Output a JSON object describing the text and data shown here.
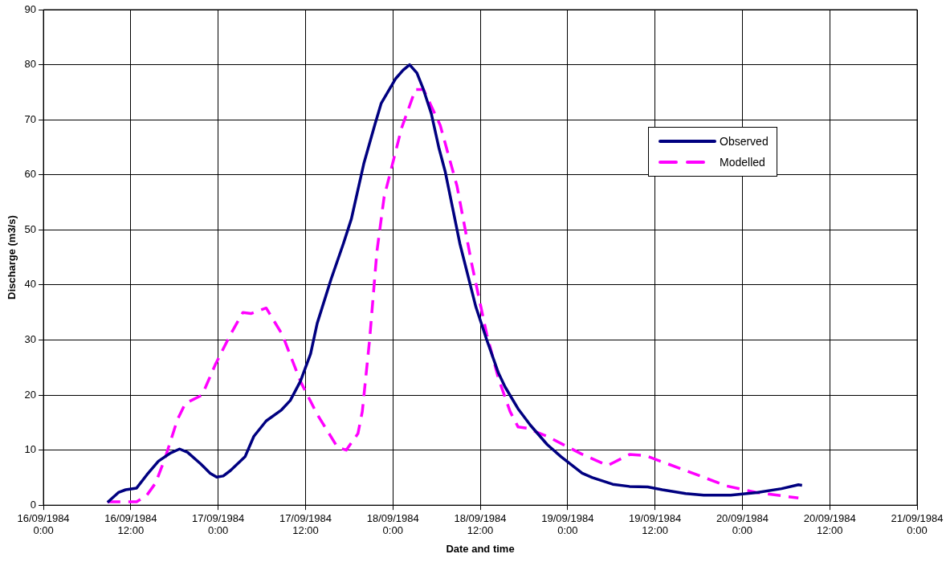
{
  "chart_data": {
    "type": "line",
    "xlabel": "Date and time",
    "ylabel": "Discharge (m3/s)",
    "xlim": [
      "1984-09-16T00:00",
      "1984-09-21T00:00"
    ],
    "xticks": [
      {
        "value": "1984-09-16T00:00",
        "label": "16/09/1984 0:00"
      },
      {
        "value": "1984-09-16T12:00",
        "label": "16/09/1984 12:00"
      },
      {
        "value": "1984-09-17T00:00",
        "label": "17/09/1984 0:00"
      },
      {
        "value": "1984-09-17T12:00",
        "label": "17/09/1984 12:00"
      },
      {
        "value": "1984-09-18T00:00",
        "label": "18/09/1984 0:00"
      },
      {
        "value": "1984-09-18T12:00",
        "label": "18/09/1984 12:00"
      },
      {
        "value": "1984-09-19T00:00",
        "label": "19/09/1984 0:00"
      },
      {
        "value": "1984-09-19T12:00",
        "label": "19/09/1984 12:00"
      },
      {
        "value": "1984-09-20T00:00",
        "label": "20/09/1984 0:00"
      },
      {
        "value": "1984-09-20T12:00",
        "label": "20/09/1984 12:00"
      },
      {
        "value": "1984-09-21T00:00",
        "label": "21/09/1984 0:00"
      }
    ],
    "ylim": [
      0,
      90
    ],
    "yticks": [
      0,
      10,
      20,
      30,
      40,
      50,
      60,
      70,
      80,
      90
    ],
    "grid": true,
    "legend": "right",
    "marker": "none",
    "series": [
      {
        "name": "Observed",
        "color": "#000080",
        "line_style": "solid",
        "x": [
          "1984-09-16T08:48",
          "1984-09-16T10:18",
          "1984-09-16T11:18",
          "1984-09-16T12:48",
          "1984-09-16T14:12",
          "1984-09-16T15:48",
          "1984-09-16T17:30",
          "1984-09-16T18:42",
          "1984-09-16T19:48",
          "1984-09-16T21:36",
          "1984-09-16T22:54",
          "1984-09-16T23:48",
          "1984-09-17T00:42",
          "1984-09-17T01:42",
          "1984-09-17T03:42",
          "1984-09-17T04:54",
          "1984-09-17T06:36",
          "1984-09-17T08:42",
          "1984-09-17T09:54",
          "1984-09-17T11:18",
          "1984-09-17T12:42",
          "1984-09-17T13:36",
          "1984-09-17T15:30",
          "1984-09-17T17:12",
          "1984-09-17T18:18",
          "1984-09-17T20:00",
          "1984-09-17T21:30",
          "1984-09-17T22:24",
          "1984-09-18T00:24",
          "1984-09-18T01:24",
          "1984-09-18T02:18",
          "1984-09-18T03:18",
          "1984-09-18T04:12",
          "1984-09-18T05:18",
          "1984-09-18T06:18",
          "1984-09-18T07:12",
          "1984-09-18T09:12",
          "1984-09-18T11:24",
          "1984-09-18T12:54",
          "1984-09-18T14:30",
          "1984-09-18T15:24",
          "1984-09-18T17:12",
          "1984-09-18T18:54",
          "1984-09-18T21:12",
          "1984-09-18T23:06",
          "1984-09-19T02:00",
          "1984-09-19T03:24",
          "1984-09-19T06:12",
          "1984-09-19T08:30",
          "1984-09-19T11:00",
          "1984-09-19T13:00",
          "1984-09-19T16:12",
          "1984-09-19T18:42",
          "1984-09-19T22:24",
          "1984-09-20T02:00",
          "1984-09-20T05:24",
          "1984-09-20T07:42",
          "1984-09-20T08:12"
        ],
        "values": [
          0.5,
          2.3,
          2.8,
          3.1,
          5.5,
          8,
          9.5,
          10.2,
          9.6,
          7.5,
          5.8,
          5.1,
          5.3,
          6.3,
          8.8,
          12.5,
          15.3,
          17.3,
          19,
          22.5,
          27.5,
          33,
          41,
          47.5,
          52,
          62,
          69,
          73,
          77.5,
          79,
          80,
          78.5,
          75.5,
          71,
          65,
          60.5,
          47.5,
          36,
          30,
          24,
          21.5,
          17.5,
          14.5,
          11,
          8.8,
          5.8,
          5,
          3.8,
          3.4,
          3.3,
          2.8,
          2.1,
          1.8,
          1.8,
          2.3,
          3,
          3.7,
          3.6
        ]
      },
      {
        "name": "Modelled",
        "color": "#ff00ff",
        "line_style": "dashed",
        "x": [
          "1984-09-16T08:48",
          "1984-09-16T11:18",
          "1984-09-16T12:48",
          "1984-09-16T14:12",
          "1984-09-16T15:24",
          "1984-09-16T16:42",
          "1984-09-16T18:24",
          "1984-09-16T19:30",
          "1984-09-16T21:48",
          "1984-09-16T23:36",
          "1984-09-17T01:42",
          "1984-09-17T03:24",
          "1984-09-17T04:30",
          "1984-09-17T06:36",
          "1984-09-17T08:48",
          "1984-09-17T11:18",
          "1984-09-17T13:36",
          "1984-09-17T16:24",
          "1984-09-17T17:36",
          "1984-09-17T19:12",
          "1984-09-17T19:48",
          "1984-09-17T20:48",
          "1984-09-17T21:48",
          "1984-09-17T22:48",
          "1984-09-18T01:12",
          "1984-09-18T03:06",
          "1984-09-18T04:12",
          "1984-09-18T06:30",
          "1984-09-18T08:48",
          "1984-09-18T10:48",
          "1984-09-18T12:54",
          "1984-09-18T14:30",
          "1984-09-18T16:06",
          "1984-09-18T17:12",
          "1984-09-18T18:24",
          "1984-09-18T21:12",
          "1984-09-19T01:54",
          "1984-09-19T05:30",
          "1984-09-19T08:30",
          "1984-09-19T10:42",
          "1984-09-19T16:24",
          "1984-09-19T21:48",
          "1984-09-20T02:00",
          "1984-09-20T07:42"
        ],
        "values": [
          0.6,
          0.6,
          0.6,
          1.8,
          4,
          8.5,
          15.5,
          18.5,
          20,
          25.5,
          31,
          35,
          34.8,
          35.8,
          31,
          22.5,
          16.5,
          10.5,
          10,
          13,
          17,
          30,
          46,
          56,
          68.5,
          75.5,
          75.5,
          69,
          58,
          44,
          31,
          23,
          17,
          14.2,
          14,
          12.5,
          9.3,
          7.2,
          9.2,
          9,
          6.2,
          3.5,
          2.3,
          1.3
        ]
      }
    ]
  }
}
